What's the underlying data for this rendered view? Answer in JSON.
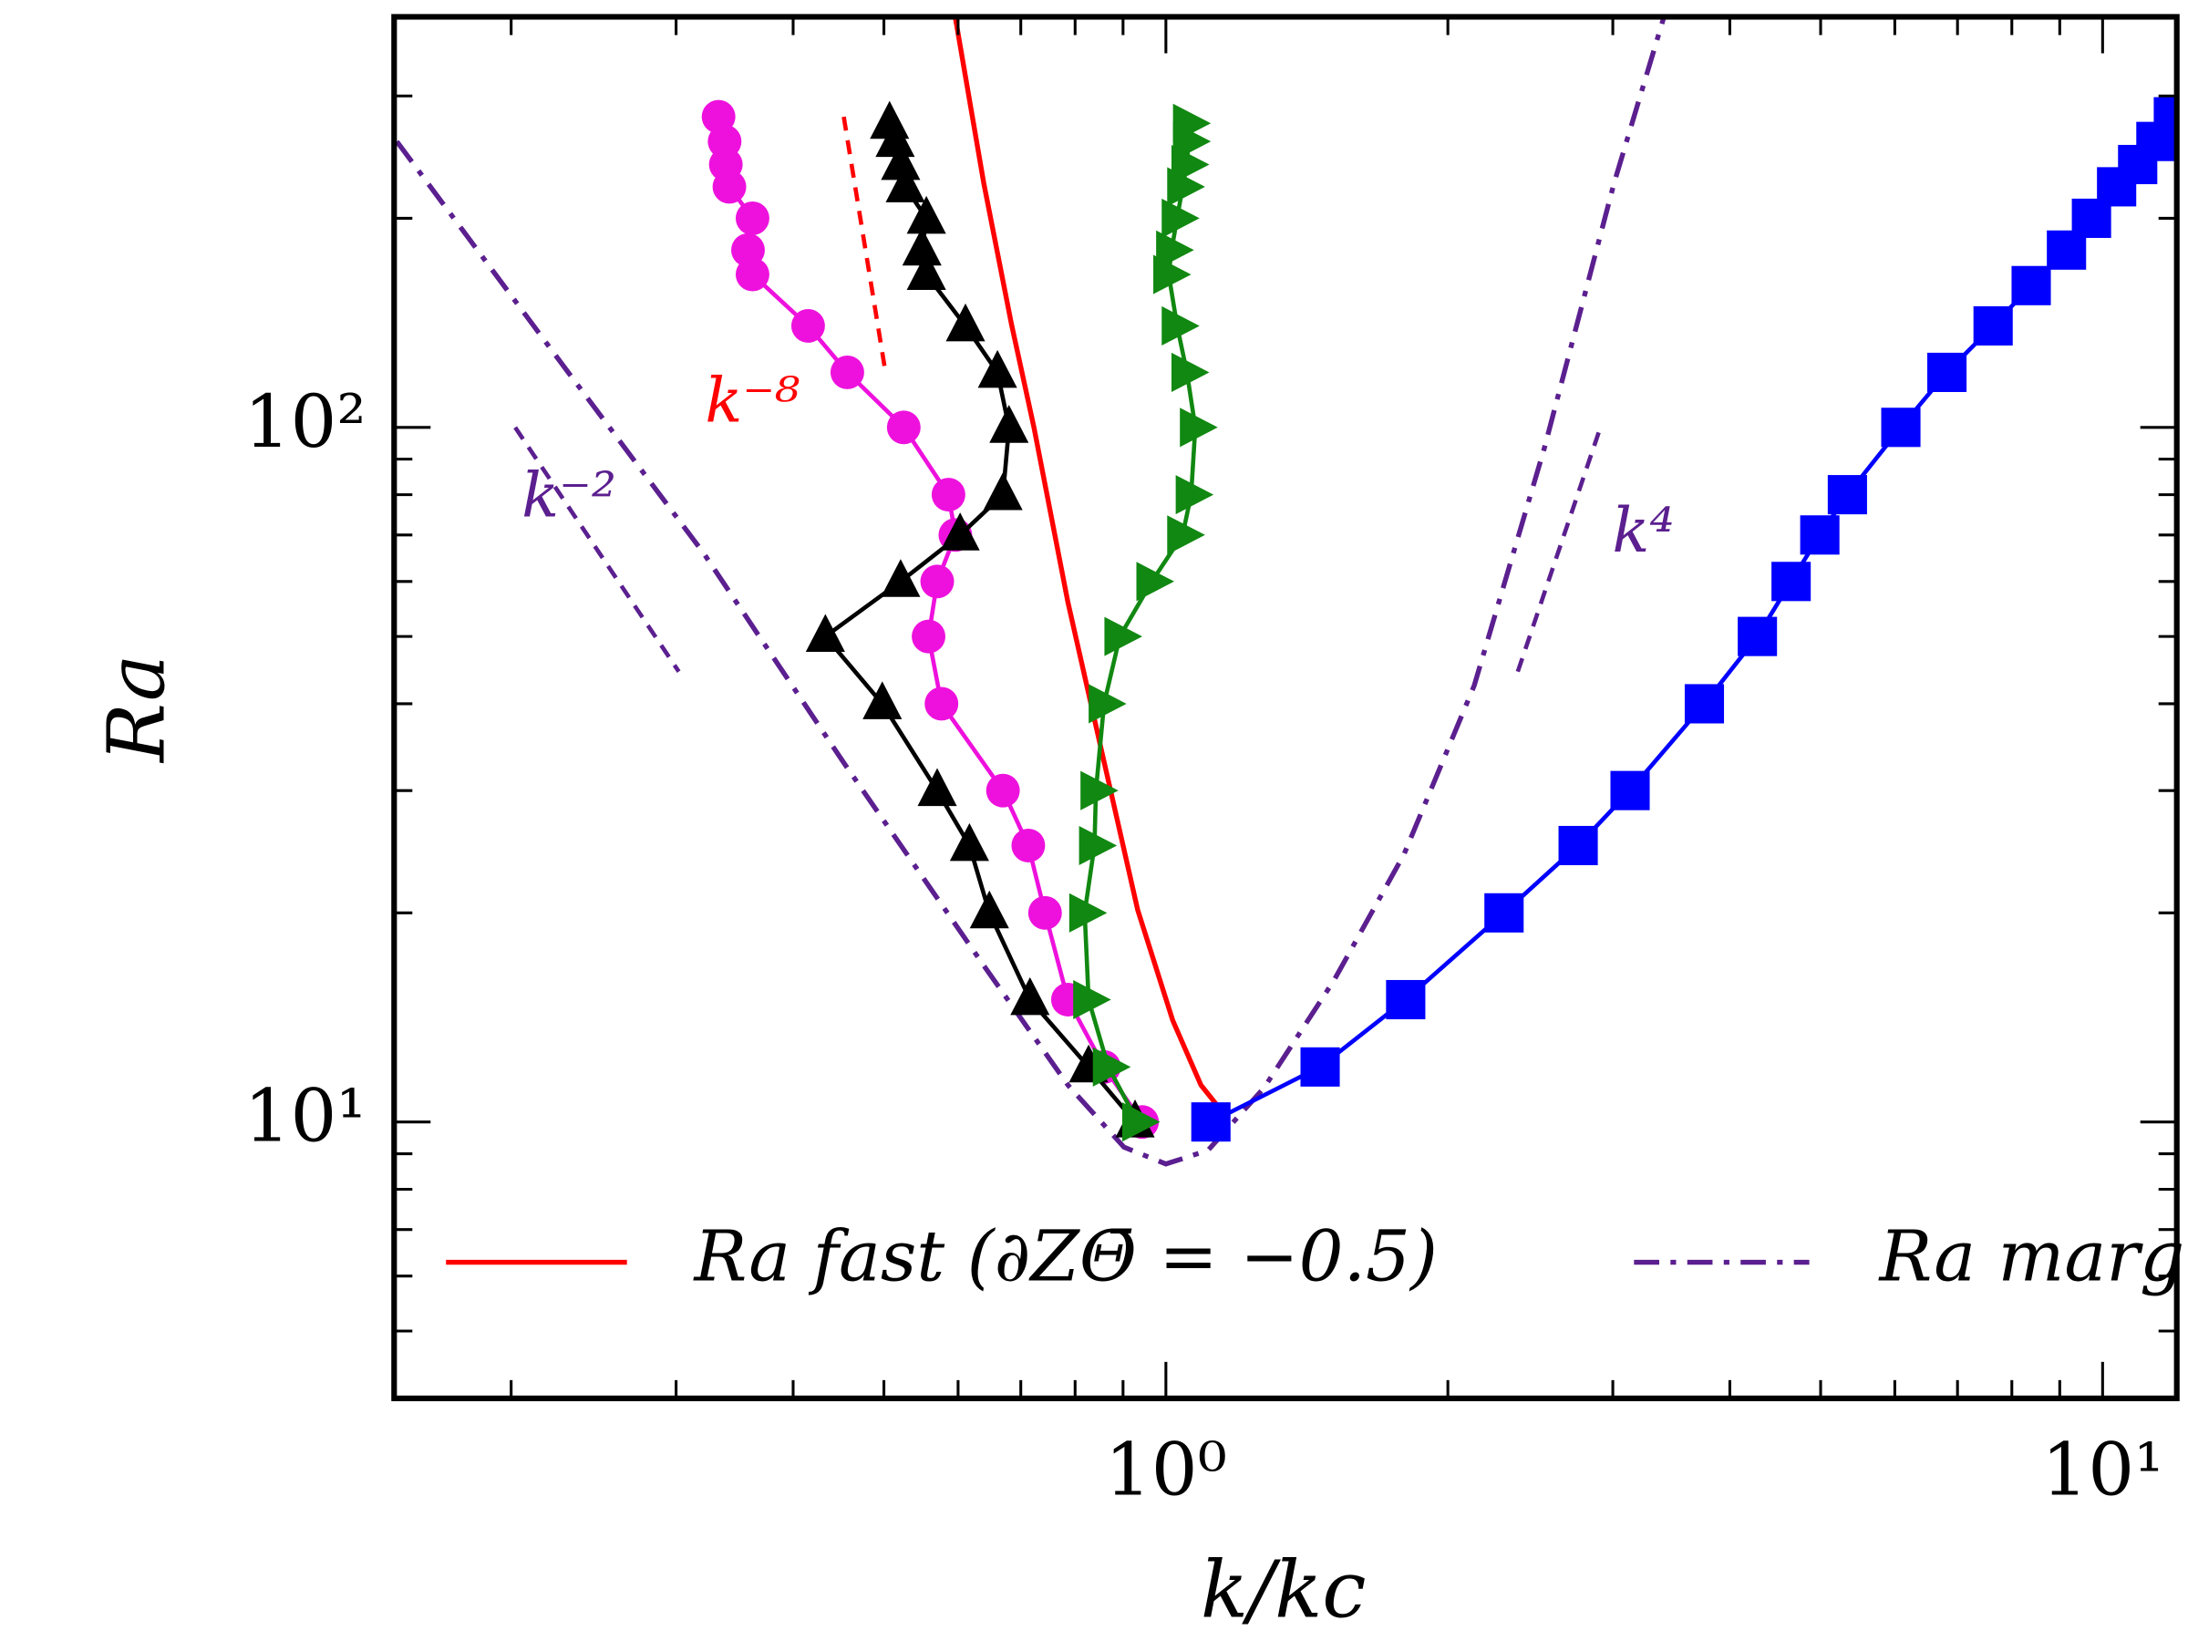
{
  "chart_data": {
    "type": "scatter",
    "xlabel": "k/kc",
    "ylabel": "Ra",
    "xscale": "log",
    "yscale": "log",
    "xlim": [
      0.15,
      12
    ],
    "ylim": [
      4,
      390
    ],
    "xticks": [
      {
        "value": 1,
        "label": "10⁰"
      },
      {
        "value": 10,
        "label": "10¹"
      }
    ],
    "yticks": [
      {
        "value": 10,
        "label": "10¹"
      },
      {
        "value": 100,
        "label": "10²"
      }
    ],
    "xticks_minor": [
      0.2,
      0.3,
      0.4,
      0.5,
      0.6,
      0.7,
      0.8,
      0.9,
      2,
      3,
      4,
      5,
      6,
      7,
      8,
      9
    ],
    "yticks_minor": [
      5,
      6,
      7,
      8,
      9,
      20,
      30,
      40,
      50,
      60,
      70,
      80,
      90,
      200,
      300
    ],
    "legend": "lower center",
    "lines": [
      {
        "name": "Ra fast (∂ZΘ̄ = −0.5)",
        "color": "#ff0000",
        "style": "solid",
        "x": [
          0.596,
          0.639,
          0.684,
          0.723,
          0.786,
          0.856,
          0.933,
          1.017,
          1.09,
          1.165
        ],
        "y": [
          389,
          225,
          141,
          100,
          56,
          33.7,
          20.2,
          14,
          11.3,
          10.1
        ]
      },
      {
        "name": "Ra marg",
        "color": "#5b1f8f",
        "style": "dashdot",
        "x": [
          0.151,
          0.227,
          0.321,
          0.453,
          0.639,
          0.786,
          0.902,
          1.0,
          1.109,
          1.273,
          1.512,
          1.796,
          2.134,
          2.535,
          3.01,
          3.4
        ],
        "y": [
          258,
          123,
          65.9,
          32.9,
          16.8,
          11.3,
          9.2,
          8.7,
          9.1,
          11.2,
          16,
          24.3,
          42.5,
          93.3,
          225,
          389
        ]
      }
    ],
    "series": [
      {
        "marker": "circle",
        "color": "#ee11dd",
        "x": [
          0.333,
          0.338,
          0.339,
          0.342,
          0.362,
          0.358,
          0.362,
          0.415,
          0.457,
          0.525,
          0.586,
          0.596,
          0.57,
          0.558,
          0.576,
          0.67,
          0.713,
          0.743,
          0.786,
          0.859,
          0.943
        ],
        "y": [
          280,
          258,
          239,
          222,
          200,
          180,
          166,
          140,
          120,
          100,
          80,
          70,
          60,
          50,
          40,
          30,
          25,
          20,
          15,
          12,
          10
        ]
      },
      {
        "marker": "triangle-up",
        "color": "#000000",
        "x": [
          0.507,
          0.514,
          0.521,
          0.527,
          0.555,
          0.549,
          0.555,
          0.611,
          0.661,
          0.68,
          0.67,
          0.603,
          0.521,
          0.433,
          0.498,
          0.57,
          0.617,
          0.648,
          0.716,
          0.827,
          0.927
        ],
        "y": [
          274,
          258,
          239,
          222,
          200,
          180,
          166,
          140,
          120,
          100,
          80,
          70,
          60,
          50,
          40,
          30,
          25,
          20,
          15,
          12,
          10
        ]
      },
      {
        "marker": "triangle-right",
        "color": "#118811",
        "x": [
          1.057,
          1.057,
          1.053,
          1.042,
          1.028,
          1.014,
          1.007,
          1.028,
          1.053,
          1.075,
          1.064,
          1.042,
          0.966,
          0.893,
          0.859,
          0.842,
          0.839,
          0.819,
          0.827,
          0.868,
          0.933
        ],
        "y": [
          274,
          258,
          239,
          222,
          200,
          180,
          166,
          140,
          120,
          100,
          80,
          70,
          60,
          50,
          40,
          30,
          25,
          20,
          15,
          12,
          10
        ]
      },
      {
        "marker": "square",
        "color": "#0000ff",
        "x": [
          1.117,
          1.461,
          1.803,
          2.296,
          2.755,
          3.13,
          3.757,
          4.28,
          4.65,
          4.99,
          5.34,
          6.09,
          6.82,
          7.64,
          8.39,
          9.15,
          9.73,
          10.35,
          10.9,
          11.4,
          11.9
        ],
        "y": [
          10,
          12,
          15,
          20,
          25,
          30,
          40,
          50,
          60,
          70,
          80,
          100,
          120,
          140,
          160,
          180,
          200,
          222,
          239,
          258,
          280
        ]
      }
    ],
    "guides": [
      {
        "label": "k⁻⁸",
        "color": "#ff0000",
        "x": [
          0.453,
          0.502
        ],
        "y": [
          280,
          120
        ]
      },
      {
        "label": "k⁻²",
        "color": "#5b1f8f",
        "x": [
          0.202,
          0.302
        ],
        "y": [
          100,
          44.5
        ]
      },
      {
        "label": "k⁴",
        "color": "#5b1f8f",
        "x": [
          2.375,
          2.91
        ],
        "y": [
          44.5,
          100
        ]
      }
    ]
  }
}
